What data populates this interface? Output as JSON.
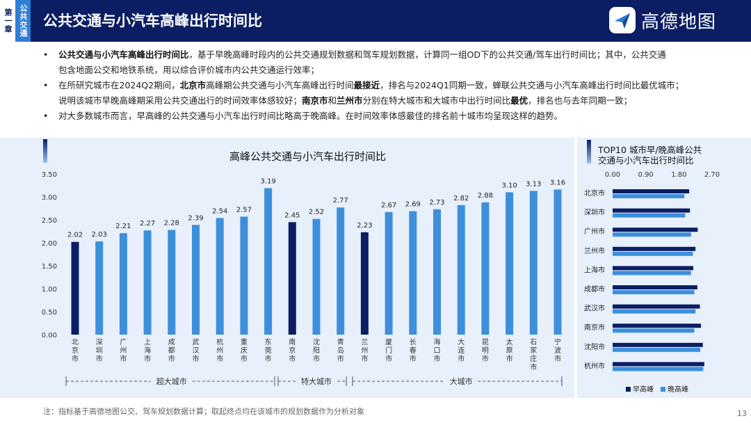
{
  "header": {
    "chapter": "第一章",
    "section": "公共交通",
    "title": "公共交通与小汽车高峰出行时间比",
    "logo_text": "高德地图"
  },
  "bullets": [
    {
      "lines": [
        [
          {
            "t": "公共交通与小汽车高峰出行时间比",
            "b": true
          },
          {
            "t": "，基于早晚高峰时段内的公共交通规划数据和驾车规划数据，计算同一组OD下的公共交通/驾车出行时间比；其中，公共交通"
          }
        ],
        [
          {
            "t": "包含地面公交和地铁系统，用以综合评价城市内公共交通运行效率；"
          }
        ]
      ]
    },
    {
      "lines": [
        [
          {
            "t": "在所研究城市在2024Q2期间，"
          },
          {
            "t": "北京市",
            "b": true
          },
          {
            "t": "高峰期公共交通与小汽车高峰出行时间"
          },
          {
            "t": "最接近",
            "b": true
          },
          {
            "t": "，排名与2024Q1同期一致，蝉联公共交通与小汽车高峰出行时间比最优城市；"
          }
        ],
        [
          {
            "t": "说明该城市早晚高峰期采用公共交通出行的时间效率体感较好；"
          },
          {
            "t": "南京市",
            "b": true
          },
          {
            "t": "和"
          },
          {
            "t": "兰州市",
            "b": true
          },
          {
            "t": "分别在特大城市和大城市中出行时间比"
          },
          {
            "t": "最优",
            "b": true
          },
          {
            "t": "，排名也与去年同期一致；"
          }
        ]
      ]
    },
    {
      "lines": [
        [
          {
            "t": "对大多数城市而言，早高峰的公共交通与小汽车出行时间比略高于晚高峰。在时间效率体感最佳的排名前十城市均呈现这样的趋势。"
          }
        ]
      ]
    }
  ],
  "chart_data": [
    {
      "type": "bar",
      "title": "高峰公共交通与小汽车出行时间比",
      "categories": [
        "北京市",
        "深圳市",
        "广州市",
        "上海市",
        "成都市",
        "武汉市",
        "杭州市",
        "重庆市",
        "东莞市",
        "南京市",
        "沈阳市",
        "青岛市",
        "兰州市",
        "厦门市",
        "长春市",
        "海口市",
        "大连市",
        "昆明市",
        "太原市",
        "石家庄市",
        "宁波市"
      ],
      "values": [
        2.02,
        2.03,
        2.21,
        2.27,
        2.28,
        2.39,
        2.54,
        2.57,
        3.19,
        2.45,
        2.52,
        2.77,
        2.23,
        2.67,
        2.69,
        2.73,
        2.82,
        2.88,
        3.1,
        3.13,
        3.16
      ],
      "value_labels": [
        "2.02",
        "2.03",
        "2.21",
        "2.27",
        "2.28",
        "2.39",
        "2.54",
        "2.57",
        "3.19",
        "2.45",
        "2.52",
        "2.77",
        "2.23",
        "2.67",
        "2.69",
        "2.73",
        "2.82",
        "2.88",
        "3.10",
        "3.13",
        "3.16"
      ],
      "highlight": [
        "北京市",
        "南京市",
        "兰州市"
      ],
      "yticks": [
        "0.00",
        "0.50",
        "1.00",
        "1.50",
        "2.00",
        "2.50",
        "3.00",
        "3.50"
      ],
      "ylim": [
        0,
        3.5
      ],
      "groups": [
        {
          "name": "超大城市",
          "from": 0,
          "to": 8
        },
        {
          "name": "特大城市",
          "from": 9,
          "to": 11
        },
        {
          "name": "大城市",
          "from": 12,
          "to": 20
        }
      ],
      "colors": {
        "bar": "#3d8fdc",
        "highlight": "#0b1e63"
      }
    },
    {
      "type": "bar",
      "orientation": "horizontal",
      "title_lines": [
        "TOP10 城市早/晚高峰公共",
        "交通与小汽车出行时间比"
      ],
      "categories": [
        "北京市",
        "深圳市",
        "广州市",
        "兰州市",
        "上海市",
        "成都市",
        "武汉市",
        "南京市",
        "沈阳市",
        "杭州市"
      ],
      "xticks": [
        "0.00",
        "0.90",
        "1.80",
        "2.70"
      ],
      "xlim": [
        0,
        2.7
      ],
      "series": [
        {
          "name": "早高峰",
          "color": "#0b1e63",
          "values": [
            2.08,
            2.1,
            2.31,
            2.25,
            2.19,
            2.3,
            2.37,
            2.4,
            2.45,
            2.49
          ]
        },
        {
          "name": "晚高峰",
          "color": "#3d8fdc",
          "values": [
            1.95,
            1.97,
            2.13,
            2.18,
            2.13,
            2.22,
            2.25,
            2.22,
            2.38,
            2.46
          ]
        }
      ]
    }
  ],
  "footnote": "注：指标基于高德地图公交、驾车规划数据计算；取起终点均在该城市的规划数据作为分析对象",
  "page_number": "13"
}
